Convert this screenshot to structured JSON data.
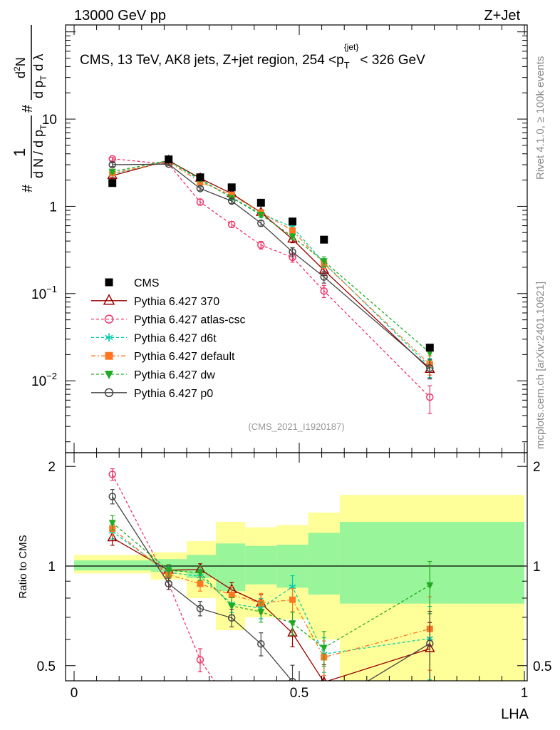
{
  "header": {
    "left": "13000 GeV pp",
    "right": "Z+Jet"
  },
  "title": {
    "main": "CMS, 13 TeV, AK8 jets, Z+jet region, 254 <p",
    "sub": "T",
    "sup": "{jet}",
    "end": "< 326 GeV"
  },
  "ylabel": {
    "hash1": "#",
    "one": "1",
    "dn": "d N / d p",
    "t1": "T",
    "hash2": "#",
    "d2n": "d",
    "sq": "2",
    "n": "N",
    "dpt": "d p",
    "t2": "T",
    "dlambda": "d λ"
  },
  "side": {
    "rivet": "Rivet 4.1.0, ≥ 100k events",
    "mcplots": "mcplots.cern.ch [arXiv:2401.10621]"
  },
  "analysis_id": "(CMS_2021_I1920187)",
  "ratio_label": "Ratio to CMS",
  "xlabel": "LHA",
  "yticks": [
    {
      "base": "10",
      "exp": "−2",
      "v": 0.01
    },
    {
      "base": "10",
      "exp": "−1",
      "v": 0.1
    },
    {
      "base": "1",
      "exp": "",
      "v": 1
    },
    {
      "base": "10",
      "exp": "",
      "v": 10
    }
  ],
  "ratio_ticks": [
    {
      "label": "0.5",
      "v": 0.5
    },
    {
      "label": "1",
      "v": 1
    },
    {
      "label": "2",
      "v": 2
    }
  ],
  "xticks": [
    {
      "label": "0",
      "v": 0
    },
    {
      "label": "0.5",
      "v": 0.5
    },
    {
      "label": "1",
      "v": 1
    }
  ],
  "chart_data": {
    "type": "scatter",
    "xlabel": "LHA",
    "ylabel": "1/(dN/dpT) d²N/(dpT dλ)",
    "xlim": [
      0,
      1
    ],
    "ylim": [
      0.0015,
      120
    ],
    "yscale": "log",
    "ratio_ylim": [
      0.45,
      2.2
    ],
    "x": [
      0.085,
      0.21,
      0.28,
      0.35,
      0.415,
      0.485,
      0.555,
      0.79
    ],
    "bin_edges": [
      0,
      0.17,
      0.25,
      0.315,
      0.38,
      0.45,
      0.52,
      0.59,
      1.0
    ],
    "cms": {
      "name": "CMS",
      "values": [
        1.85,
        3.45,
        2.15,
        1.65,
        1.1,
        0.67,
        0.415,
        0.024
      ]
    },
    "band_green": [
      [
        0.97,
        1.04
      ],
      [
        0.96,
        1.05
      ],
      [
        0.92,
        1.08
      ],
      [
        0.84,
        1.17
      ],
      [
        0.88,
        1.15
      ],
      [
        0.86,
        1.16
      ],
      [
        0.82,
        1.26
      ],
      [
        0.77,
        1.36
      ]
    ],
    "band_yellow": [
      [
        0.95,
        1.08
      ],
      [
        0.91,
        1.1
      ],
      [
        0.8,
        1.19
      ],
      [
        0.64,
        1.36
      ],
      [
        0.7,
        1.31
      ],
      [
        0.69,
        1.33
      ],
      [
        0.6,
        1.45
      ],
      [
        0.43,
        1.64
      ]
    ],
    "series": [
      {
        "name": "Pythia 6.427 370",
        "color": "#990000",
        "dash": "solid",
        "marker": "tri-open",
        "values": [
          2.25,
          3.35,
          2.1,
          1.4,
          0.85,
          0.42,
          0.185,
          0.0135
        ],
        "errors": [
          0.05,
          0.04,
          0.04,
          0.05,
          0.06,
          0.09,
          0.13,
          0.2
        ]
      },
      {
        "name": "Pythia 6.427 atlas-csc",
        "color": "#ee3366",
        "dash": "4,3",
        "marker": "circle-open",
        "values": [
          3.5,
          3.05,
          1.12,
          0.62,
          0.36,
          0.26,
          0.107,
          0.0065
        ],
        "errors": [
          0.04,
          0.04,
          0.08,
          0.08,
          0.1,
          0.12,
          0.16,
          0.35
        ]
      },
      {
        "name": "Pythia 6.427 d6t",
        "color": "#00ccaa",
        "dash": "4,3",
        "marker": "star",
        "values": [
          2.35,
          3.3,
          2.0,
          1.27,
          0.82,
          0.58,
          0.225,
          0.0145
        ],
        "errors": [
          0.05,
          0.04,
          0.05,
          0.06,
          0.07,
          0.08,
          0.12,
          0.25
        ]
      },
      {
        "name": "Pythia 6.427 default",
        "color": "#ff7722",
        "dash": "6,3,2,3",
        "marker": "square",
        "values": [
          2.4,
          3.25,
          1.9,
          1.35,
          0.85,
          0.53,
          0.22,
          0.0155
        ],
        "errors": [
          0.05,
          0.04,
          0.05,
          0.06,
          0.07,
          0.08,
          0.12,
          0.25
        ]
      },
      {
        "name": "Pythia 6.427 dw",
        "color": "#22aa22",
        "dash": "4,3",
        "marker": "tri-down",
        "values": [
          2.5,
          3.35,
          2.05,
          1.25,
          0.8,
          0.45,
          0.235,
          0.021
        ],
        "errors": [
          0.05,
          0.04,
          0.05,
          0.06,
          0.07,
          0.08,
          0.12,
          0.18
        ]
      },
      {
        "name": "Pythia 6.427 p0",
        "color": "#444444",
        "dash": "solid",
        "marker": "circle-open",
        "values": [
          3.0,
          3.05,
          1.6,
          1.15,
          0.64,
          0.3,
          0.155,
          0.014
        ],
        "errors": [
          0.05,
          0.04,
          0.05,
          0.06,
          0.08,
          0.12,
          0.15,
          0.25
        ]
      }
    ]
  }
}
